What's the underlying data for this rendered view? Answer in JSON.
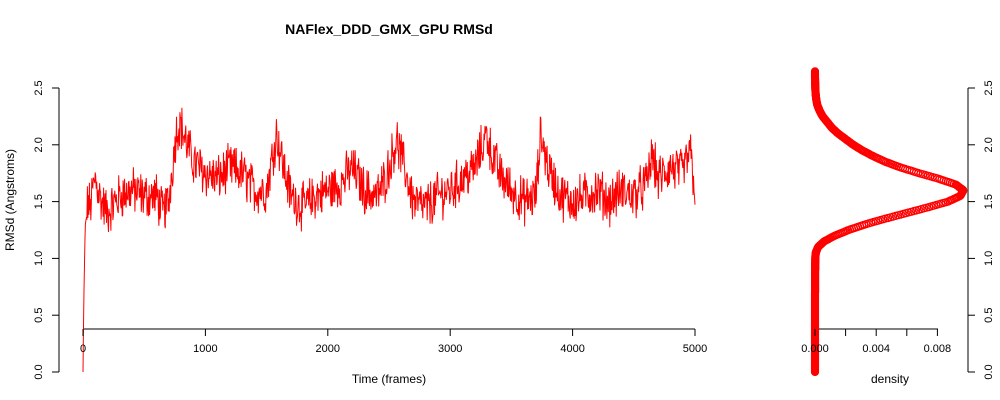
{
  "chart_data": [
    {
      "type": "line",
      "title": "NAFlex_DDD_GMX_GPU RMSd",
      "xlabel": "Time (frames)",
      "ylabel": "RMSd (Angstroms)",
      "xlim": [
        0,
        5000
      ],
      "ylim": [
        0,
        2.5
      ],
      "x_ticks": [
        "0",
        "1000",
        "2000",
        "3000",
        "4000",
        "5000"
      ],
      "y_ticks": [
        "0.0",
        "0.5",
        "1.0",
        "1.5",
        "2.0",
        "2.5"
      ],
      "series_color": "#ff0000",
      "grid": false,
      "legend": "none",
      "n_frames": 5000,
      "series": [
        {
          "x": [
            0,
            10,
            20,
            40,
            60,
            80,
            100,
            150,
            200,
            300,
            400,
            500,
            600,
            650,
            700,
            760,
            790,
            850,
            900,
            1000,
            1100,
            1200,
            1300,
            1400,
            1500,
            1580,
            1650,
            1700,
            1800,
            1900,
            2000,
            2100,
            2200,
            2300,
            2400,
            2450,
            2500,
            2560,
            2650,
            2700,
            2800,
            2900,
            3000,
            3100,
            3200,
            3300,
            3330,
            3400,
            3500,
            3600,
            3700,
            3740,
            3800,
            3900,
            4000,
            4100,
            4200,
            4300,
            4400,
            4500,
            4600,
            4650,
            4700,
            4800,
            4900,
            4960,
            5000
          ],
          "values": [
            0.0,
            0.85,
            1.3,
            1.5,
            1.45,
            1.6,
            1.7,
            1.5,
            1.4,
            1.55,
            1.6,
            1.55,
            1.55,
            1.4,
            1.5,
            2.1,
            2.2,
            2.0,
            1.85,
            1.75,
            1.7,
            1.8,
            1.75,
            1.6,
            1.6,
            2.1,
            1.75,
            1.55,
            1.45,
            1.55,
            1.6,
            1.65,
            1.8,
            1.6,
            1.55,
            1.65,
            1.8,
            2.05,
            1.7,
            1.5,
            1.45,
            1.55,
            1.6,
            1.7,
            1.8,
            2.1,
            1.95,
            1.75,
            1.6,
            1.5,
            1.55,
            2.1,
            1.8,
            1.55,
            1.5,
            1.55,
            1.6,
            1.5,
            1.6,
            1.55,
            1.65,
            1.9,
            1.7,
            1.8,
            1.75,
            1.95,
            1.6
          ]
        }
      ]
    },
    {
      "type": "scatter",
      "xlabel": "density",
      "xlim": [
        0,
        0.01
      ],
      "ylim": [
        0,
        2.5
      ],
      "x_ticks": [
        "0.000",
        "0.004",
        "0.008"
      ],
      "y_ticks": [
        "0.0",
        "0.5",
        "1.0",
        "1.5",
        "2.0",
        "2.5"
      ],
      "y_axis_side": "right",
      "marker": "open-circle",
      "series_color": "#ff0000",
      "series": [
        {
          "y": [
            0.0,
            0.3,
            0.6,
            0.9,
            1.0,
            1.05,
            1.1,
            1.15,
            1.2,
            1.25,
            1.3,
            1.35,
            1.4,
            1.45,
            1.5,
            1.55,
            1.6,
            1.65,
            1.7,
            1.75,
            1.8,
            1.85,
            1.9,
            1.95,
            2.0,
            2.05,
            2.1,
            2.15,
            2.2,
            2.25,
            2.3,
            2.35,
            2.4,
            2.45,
            2.5,
            2.55,
            2.6,
            2.65
          ],
          "x": [
            0.0,
            0.0,
            0.0,
            1e-05,
            2e-05,
            5e-05,
            0.0002,
            0.0006,
            0.0013,
            0.0022,
            0.0033,
            0.0046,
            0.006,
            0.0074,
            0.0087,
            0.0095,
            0.0097,
            0.0092,
            0.0081,
            0.0068,
            0.0056,
            0.0046,
            0.0038,
            0.0031,
            0.0025,
            0.002,
            0.0015,
            0.0011,
            0.0008,
            0.0005,
            0.0003,
            0.00015,
            8e-05,
            4e-05,
            2e-05,
            1e-05,
            0.0,
            0.0
          ]
        }
      ]
    }
  ]
}
